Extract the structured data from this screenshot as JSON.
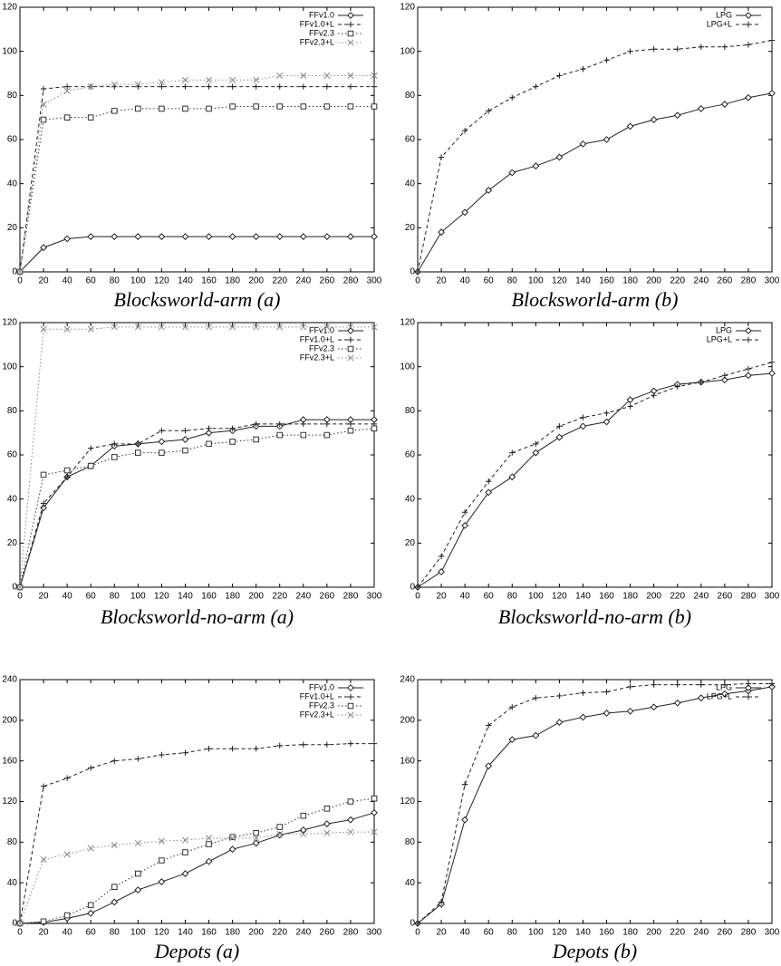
{
  "chart_data": [
    {
      "type": "line",
      "title": "Blocksworld-arm (a)",
      "legend": "upper right",
      "x": [
        0,
        20,
        40,
        60,
        80,
        100,
        120,
        140,
        160,
        180,
        200,
        220,
        240,
        260,
        280,
        300
      ],
      "xlim": [
        0,
        300
      ],
      "xticks": [
        0,
        20,
        40,
        60,
        80,
        100,
        120,
        140,
        160,
        180,
        200,
        220,
        240,
        260,
        280,
        300
      ],
      "ylim": [
        0,
        120
      ],
      "yticks": [
        0,
        20,
        40,
        60,
        80,
        100,
        120
      ],
      "series": [
        {
          "name": "FFv1.0",
          "color": "#222222",
          "dash": "solid",
          "marker": "diamond",
          "values": [
            0,
            11,
            15,
            16,
            16,
            16,
            16,
            16,
            16,
            16,
            16,
            16,
            16,
            16,
            16,
            16
          ]
        },
        {
          "name": "FFv1.0+L",
          "color": "#222222",
          "dash": "dashed",
          "marker": "plus",
          "values": [
            0,
            83,
            84,
            84,
            84,
            84,
            84,
            84,
            84,
            84,
            84,
            84,
            84,
            84,
            84,
            84
          ]
        },
        {
          "name": "FFv2.3",
          "color": "#333333",
          "dash": "dotted",
          "marker": "square",
          "values": [
            0,
            69,
            70,
            70,
            73,
            74,
            74,
            74,
            74,
            75,
            75,
            75,
            75,
            75,
            75,
            75
          ]
        },
        {
          "name": "FFv2.3+L",
          "color": "#888888",
          "dash": "dotted",
          "marker": "cross",
          "values": [
            0,
            76,
            82,
            84,
            85,
            85,
            86,
            87,
            87,
            87,
            87,
            89,
            89,
            89,
            89,
            89
          ]
        }
      ]
    },
    {
      "type": "line",
      "title": "Blocksworld-arm (b)",
      "legend": "upper right",
      "x": [
        0,
        20,
        40,
        60,
        80,
        100,
        120,
        140,
        160,
        180,
        200,
        220,
        240,
        260,
        280,
        300
      ],
      "xlim": [
        0,
        300
      ],
      "xticks": [
        0,
        20,
        40,
        60,
        80,
        100,
        120,
        140,
        160,
        180,
        200,
        220,
        240,
        260,
        280,
        300
      ],
      "ylim": [
        0,
        120
      ],
      "yticks": [
        0,
        20,
        40,
        60,
        80,
        100,
        120
      ],
      "series": [
        {
          "name": "LPG",
          "color": "#222222",
          "dash": "solid",
          "marker": "diamond",
          "values": [
            0,
            18,
            27,
            37,
            45,
            48,
            52,
            58,
            60,
            66,
            69,
            71,
            74,
            76,
            79,
            81
          ]
        },
        {
          "name": "LPG+L",
          "color": "#222222",
          "dash": "dashed",
          "marker": "plus",
          "values": [
            0,
            52,
            64,
            73,
            79,
            84,
            89,
            92,
            96,
            100,
            101,
            101,
            102,
            102,
            103,
            105
          ]
        }
      ]
    },
    {
      "type": "line",
      "title": "Blocksworld-no-arm (a)",
      "legend": "upper right",
      "x": [
        0,
        20,
        40,
        60,
        80,
        100,
        120,
        140,
        160,
        180,
        200,
        220,
        240,
        260,
        280,
        300
      ],
      "xlim": [
        0,
        300
      ],
      "xticks": [
        0,
        20,
        40,
        60,
        80,
        100,
        120,
        140,
        160,
        180,
        200,
        220,
        240,
        260,
        280,
        300
      ],
      "ylim": [
        0,
        120
      ],
      "yticks": [
        0,
        20,
        40,
        60,
        80,
        100,
        120
      ],
      "series": [
        {
          "name": "FFv1.0",
          "color": "#222222",
          "dash": "solid",
          "marker": "diamond",
          "values": [
            0,
            36,
            50,
            55,
            64,
            65,
            66,
            67,
            70,
            71,
            73,
            73,
            76,
            76,
            76,
            76
          ]
        },
        {
          "name": "FFv1.0+L",
          "color": "#222222",
          "dash": "dashed",
          "marker": "plus",
          "values": [
            0,
            38,
            50,
            63,
            65,
            65,
            71,
            71,
            72,
            72,
            74,
            74,
            74,
            74,
            74,
            74
          ]
        },
        {
          "name": "FFv2.3",
          "color": "#333333",
          "dash": "dotted",
          "marker": "square",
          "values": [
            0,
            51,
            53,
            55,
            59,
            61,
            61,
            62,
            65,
            66,
            67,
            69,
            69,
            69,
            71,
            72
          ]
        },
        {
          "name": "FFv2.3+L",
          "color": "#888888",
          "dash": "dotted",
          "marker": "cross",
          "values": [
            0,
            117,
            117,
            117,
            118,
            118,
            118,
            118,
            118,
            118,
            118,
            118,
            118,
            118,
            118,
            118
          ]
        }
      ]
    },
    {
      "type": "line",
      "title": "Blocksworld-no-arm (b)",
      "legend": "upper right",
      "x": [
        0,
        20,
        40,
        60,
        80,
        100,
        120,
        140,
        160,
        180,
        200,
        220,
        240,
        260,
        280,
        300
      ],
      "xlim": [
        0,
        300
      ],
      "xticks": [
        0,
        20,
        40,
        60,
        80,
        100,
        120,
        140,
        160,
        180,
        200,
        220,
        240,
        260,
        280,
        300
      ],
      "ylim": [
        0,
        120
      ],
      "yticks": [
        0,
        20,
        40,
        60,
        80,
        100,
        120
      ],
      "series": [
        {
          "name": "LPG",
          "color": "#222222",
          "dash": "solid",
          "marker": "diamond",
          "values": [
            0,
            7,
            28,
            43,
            50,
            61,
            68,
            73,
            75,
            85,
            89,
            92,
            93,
            94,
            96,
            97
          ]
        },
        {
          "name": "LPG+L",
          "color": "#222222",
          "dash": "dashed",
          "marker": "plus",
          "values": [
            0,
            14,
            34,
            48,
            61,
            65,
            73,
            77,
            79,
            82,
            87,
            91,
            93,
            96,
            99,
            102
          ]
        }
      ]
    },
    {
      "type": "line",
      "title": "Depots (a)",
      "legend": "upper right",
      "x": [
        0,
        20,
        40,
        60,
        80,
        100,
        120,
        140,
        160,
        180,
        200,
        220,
        240,
        260,
        280,
        300
      ],
      "xlim": [
        0,
        300
      ],
      "xticks": [
        0,
        20,
        40,
        60,
        80,
        100,
        120,
        140,
        160,
        180,
        200,
        220,
        240,
        260,
        280,
        300
      ],
      "ylim": [
        0,
        240
      ],
      "yticks": [
        0,
        40,
        80,
        120,
        160,
        200,
        240
      ],
      "series": [
        {
          "name": "FFv1.0",
          "color": "#222222",
          "dash": "solid",
          "marker": "diamond",
          "values": [
            0,
            1,
            5,
            10,
            21,
            33,
            41,
            49,
            61,
            73,
            79,
            87,
            92,
            98,
            102,
            109
          ]
        },
        {
          "name": "FFv1.0+L",
          "color": "#222222",
          "dash": "dashed",
          "marker": "plus",
          "values": [
            0,
            135,
            143,
            153,
            160,
            162,
            166,
            168,
            172,
            172,
            172,
            175,
            176,
            176,
            177,
            177
          ]
        },
        {
          "name": "FFv2.3",
          "color": "#333333",
          "dash": "dotted",
          "marker": "square",
          "values": [
            0,
            2,
            8,
            18,
            36,
            49,
            62,
            70,
            78,
            85,
            89,
            95,
            106,
            113,
            120,
            123
          ]
        },
        {
          "name": "FFv2.3+L",
          "color": "#888888",
          "dash": "dotted",
          "marker": "cross",
          "values": [
            0,
            63,
            68,
            74,
            77,
            79,
            81,
            82,
            84,
            84,
            84,
            88,
            88,
            89,
            90,
            90
          ]
        }
      ]
    },
    {
      "type": "line",
      "title": "Depots (b)",
      "legend": "upper right",
      "x": [
        0,
        20,
        40,
        60,
        80,
        100,
        120,
        140,
        160,
        180,
        200,
        220,
        240,
        260,
        280,
        300
      ],
      "xlim": [
        0,
        300
      ],
      "xticks": [
        0,
        20,
        40,
        60,
        80,
        100,
        120,
        140,
        160,
        180,
        200,
        220,
        240,
        260,
        280,
        300
      ],
      "ylim": [
        0,
        240
      ],
      "yticks": [
        0,
        40,
        80,
        120,
        160,
        200,
        240
      ],
      "series": [
        {
          "name": "LPG",
          "color": "#222222",
          "dash": "solid",
          "marker": "diamond",
          "values": [
            0,
            19,
            102,
            155,
            181,
            185,
            198,
            203,
            207,
            209,
            213,
            217,
            222,
            226,
            229,
            233
          ]
        },
        {
          "name": "LPG+L",
          "color": "#222222",
          "dash": "dashed",
          "marker": "plus",
          "values": [
            0,
            21,
            137,
            195,
            213,
            222,
            224,
            227,
            228,
            233,
            235,
            235,
            235,
            235,
            236,
            236
          ]
        }
      ]
    }
  ]
}
